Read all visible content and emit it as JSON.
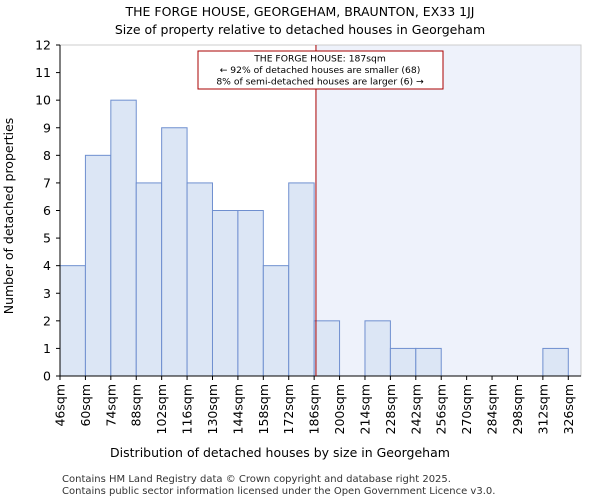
{
  "chart_data": {
    "type": "bar",
    "title": "THE FORGE HOUSE, GEORGEHAM, BRAUNTON, EX33 1JJ",
    "subtitle": "Size of property relative to detached houses in Georgeham",
    "xlabel": "Distribution of detached houses by size in Georgeham",
    "ylabel": "Number of detached properties",
    "categories": [
      "46sqm",
      "60sqm",
      "74sqm",
      "88sqm",
      "102sqm",
      "116sqm",
      "130sqm",
      "144sqm",
      "158sqm",
      "172sqm",
      "186sqm",
      "200sqm",
      "214sqm",
      "228sqm",
      "242sqm",
      "256sqm",
      "270sqm",
      "284sqm",
      "298sqm",
      "312sqm",
      "326sqm"
    ],
    "values": [
      4,
      8,
      10,
      7,
      9,
      7,
      6,
      6,
      4,
      7,
      2,
      0,
      2,
      1,
      1,
      0,
      0,
      0,
      0,
      1,
      0
    ],
    "ylim": [
      0,
      12
    ],
    "yticks": [
      0,
      1,
      2,
      3,
      4,
      5,
      6,
      7,
      8,
      9,
      10,
      11,
      12
    ],
    "xlim": [
      46,
      333
    ],
    "bin_width": 14,
    "grid": false,
    "subject_size": 187,
    "annotation": {
      "line1": "THE FORGE HOUSE: 187sqm",
      "line2": "← 92% of detached houses are smaller (68)",
      "line3": "8% of semi-detached houses are larger (6) →"
    },
    "colors": {
      "bar_fill": "#dce6f5",
      "bar_edge": "#6f8fcf",
      "highlight_region": "#eef2fb",
      "marker_line": "#aa0000",
      "annotation_border": "#aa0000"
    }
  },
  "footer": {
    "line1": "Contains HM Land Registry data © Crown copyright and database right 2025.",
    "line2": "Contains public sector information licensed under the Open Government Licence v3.0."
  }
}
